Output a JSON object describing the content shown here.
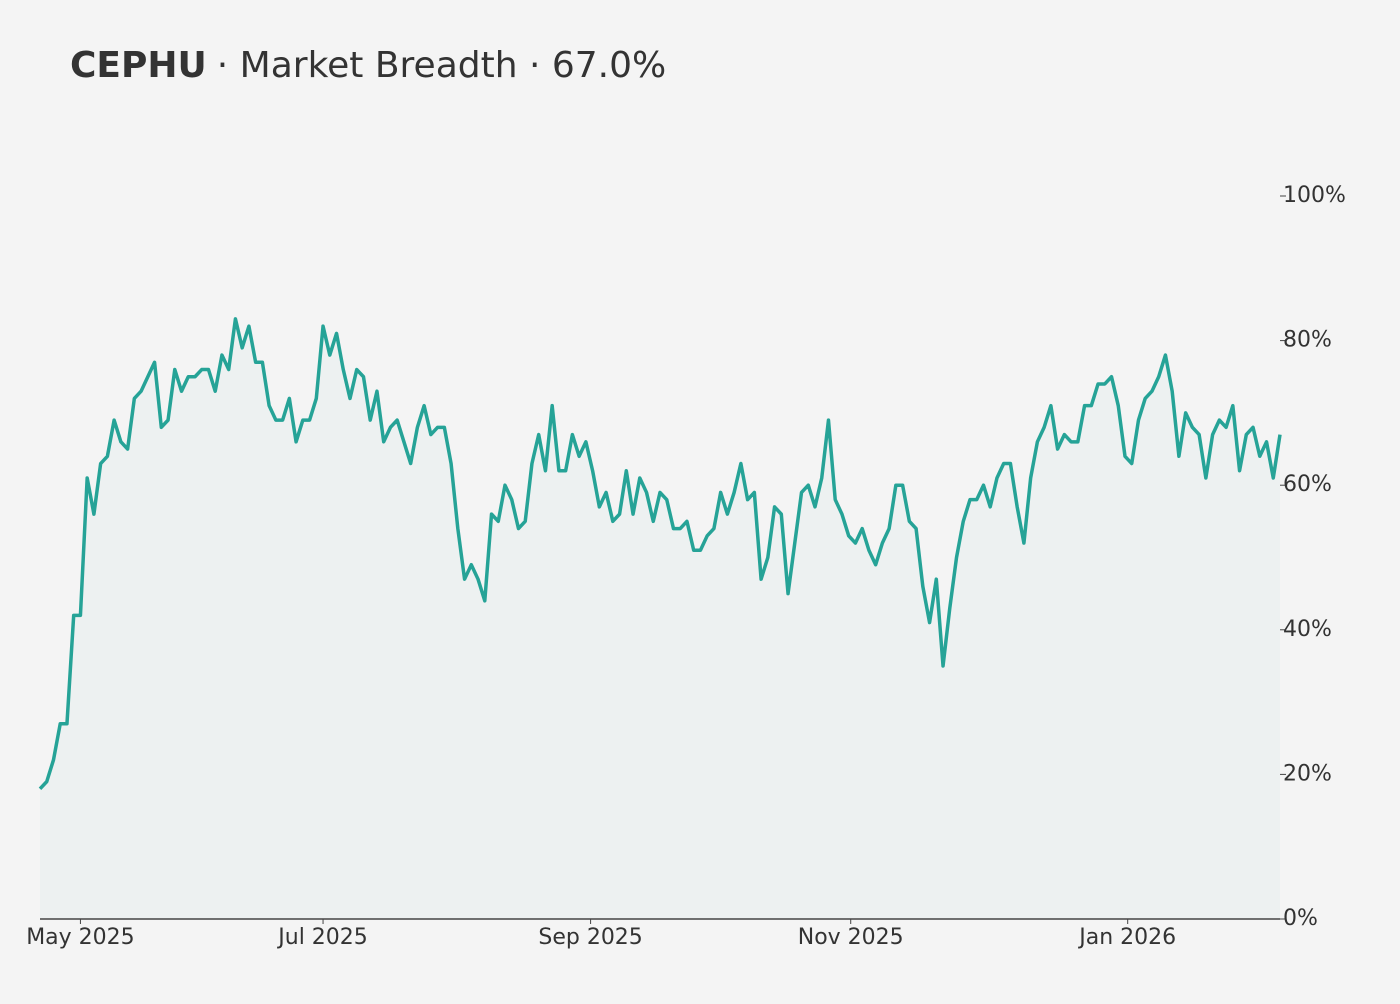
{
  "chart_data": {
    "type": "line",
    "title": "CEPHU",
    "subtitle": "· Market Breadth · 67.0%",
    "xlim": [
      0,
      184
    ],
    "xticks": [
      {
        "value": 6,
        "label": "May 2025"
      },
      {
        "value": 42,
        "label": "Jul 2025"
      },
      {
        "value": 81.7,
        "label": "Sep 2025"
      },
      {
        "value": 120.3,
        "label": "Nov 2025"
      },
      {
        "value": 161.4,
        "label": "Jan 2026"
      }
    ],
    "ylim": [
      0,
      100
    ],
    "yticks": [
      {
        "value": 0,
        "label": "0%"
      },
      {
        "value": 20,
        "label": "20%"
      },
      {
        "value": 40,
        "label": "40%"
      },
      {
        "value": 60,
        "label": "60%"
      },
      {
        "value": 80,
        "label": "80%"
      },
      {
        "value": 100,
        "label": "100%"
      }
    ],
    "y_axis_side": "right",
    "grid": false,
    "fill": "#edf1f1",
    "color": "#26a397",
    "values": [
      18,
      19,
      22,
      27,
      27,
      42,
      42,
      61,
      56,
      63,
      64,
      69,
      66,
      65,
      72,
      73,
      75,
      77,
      68,
      69,
      76,
      73,
      75,
      75,
      76,
      76,
      73,
      78,
      76,
      83,
      79,
      82,
      77,
      77,
      71,
      69,
      69,
      72,
      66,
      69,
      69,
      72,
      82,
      78,
      81,
      76,
      72,
      76,
      75,
      69,
      73,
      66,
      68,
      69,
      66,
      63,
      68,
      71,
      67,
      68,
      68,
      63,
      54,
      47,
      49,
      47,
      44,
      56,
      55,
      60,
      58,
      54,
      55,
      63,
      67,
      62,
      71,
      62,
      62,
      67,
      64,
      66,
      62,
      57,
      59,
      55,
      56,
      62,
      56,
      61,
      59,
      55,
      59,
      58,
      54,
      54,
      55,
      51,
      51,
      53,
      54,
      59,
      56,
      59,
      63,
      58,
      59,
      47,
      50,
      57,
      56,
      45,
      52,
      59,
      60,
      57,
      61,
      69,
      58,
      56,
      53,
      52,
      54,
      51,
      49,
      52,
      54,
      60,
      60,
      55,
      54,
      46,
      41,
      47,
      35,
      43,
      50,
      55,
      58,
      58,
      60,
      57,
      61,
      63,
      63,
      57,
      52,
      61,
      66,
      68,
      71,
      65,
      67,
      66,
      66,
      71,
      71,
      74,
      74,
      75,
      71,
      64,
      63,
      69,
      72,
      73,
      75,
      78,
      73,
      64,
      70,
      68,
      67,
      61,
      67,
      69,
      68,
      71,
      62,
      67,
      68,
      64,
      66,
      61,
      67
    ]
  }
}
